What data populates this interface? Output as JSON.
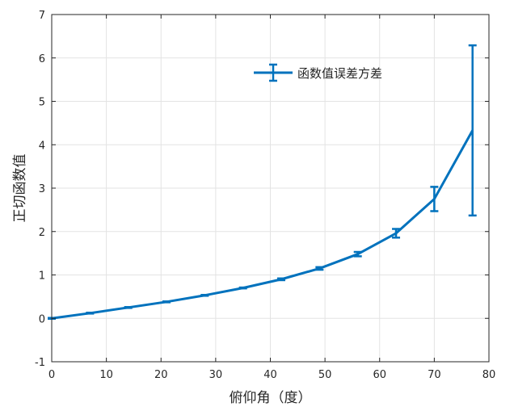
{
  "chart_data": {
    "type": "line",
    "title": "",
    "xlabel": "俯仰角（度）",
    "ylabel": "正切函数值",
    "xlim": [
      0,
      80
    ],
    "ylim": [
      -1,
      7
    ],
    "xticks": [
      0,
      10,
      20,
      30,
      40,
      50,
      60,
      70,
      80
    ],
    "yticks": [
      -1,
      0,
      1,
      2,
      3,
      4,
      5,
      6,
      7
    ],
    "grid": true,
    "legend_position": "top-right",
    "series": [
      {
        "name": "函数值误差方差",
        "color": "#0072BD",
        "x": [
          0,
          7,
          14,
          21,
          28,
          35,
          42,
          49,
          56,
          63,
          70,
          77
        ],
        "y": [
          0,
          0.12,
          0.25,
          0.38,
          0.53,
          0.7,
          0.9,
          1.15,
          1.48,
          1.96,
          2.75,
          4.33
        ],
        "error": [
          0.01,
          0.01,
          0.01,
          0.01,
          0.01,
          0.01,
          0.02,
          0.03,
          0.05,
          0.1,
          0.28,
          1.96
        ]
      }
    ]
  }
}
